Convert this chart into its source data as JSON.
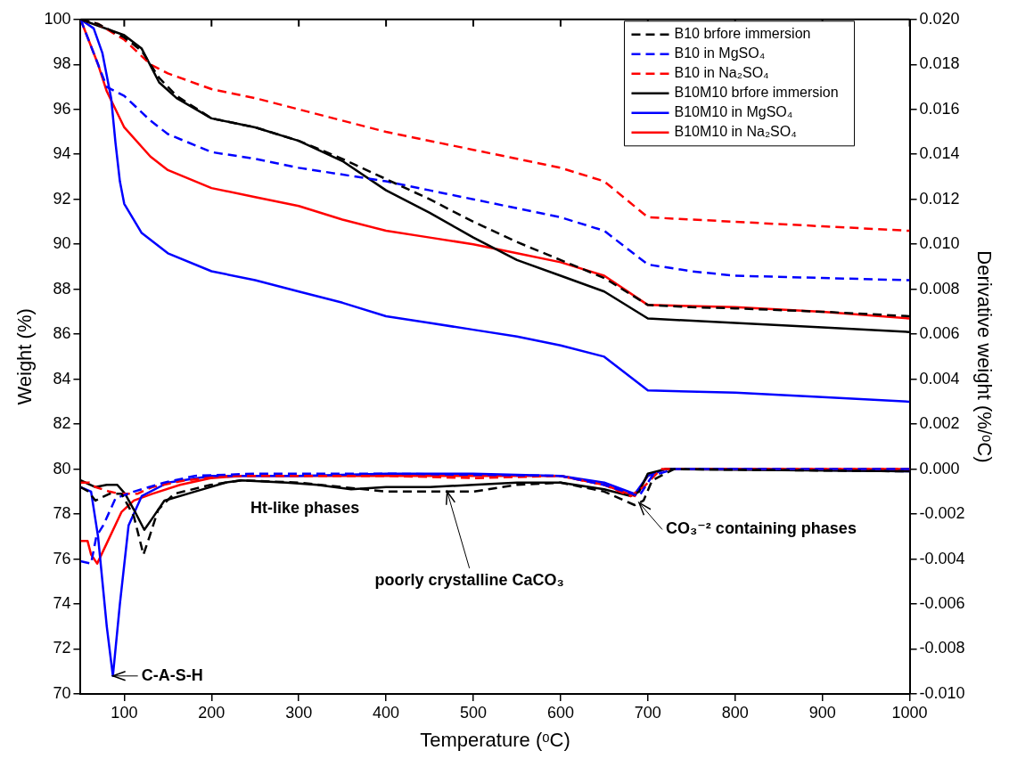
{
  "chart_data": {
    "type": "line",
    "xlabel": "Temperature (ᵒC)",
    "ylabel": "Weight (%)",
    "y2label": "Derivative weight (%/ᵒC)",
    "xlim": [
      50,
      1000
    ],
    "xticks": [
      100,
      200,
      300,
      400,
      500,
      600,
      700,
      800,
      900,
      1000
    ],
    "ylim": [
      70,
      100
    ],
    "yticks": [
      70,
      72,
      74,
      76,
      78,
      80,
      82,
      84,
      86,
      88,
      90,
      92,
      94,
      96,
      98,
      100
    ],
    "y2lim": [
      -0.01,
      0.02
    ],
    "y2ticks": [
      {
        "value": -0.01,
        "label": "-0.010"
      },
      {
        "value": -0.008,
        "label": "-0.008"
      },
      {
        "value": -0.006,
        "label": "-0.006"
      },
      {
        "value": -0.004,
        "label": "-0.004"
      },
      {
        "value": -0.002,
        "label": "-0.002"
      },
      {
        "value": 0,
        "label": "0.000"
      },
      {
        "value": 0.002,
        "label": "0.002"
      },
      {
        "value": 0.004,
        "label": "0.004"
      },
      {
        "value": 0.006,
        "label": "0.006"
      },
      {
        "value": 0.008,
        "label": "0.008"
      },
      {
        "value": 0.01,
        "label": "0.010"
      },
      {
        "value": 0.012,
        "label": "0.012"
      },
      {
        "value": 0.014,
        "label": "0.014"
      },
      {
        "value": 0.016,
        "label": "0.016"
      },
      {
        "value": 0.018,
        "label": "0.018"
      },
      {
        "value": 0.02,
        "label": "0.020"
      }
    ],
    "grid": false,
    "legend": "top right",
    "marker": "none",
    "annotations": [
      "Ht-like phases",
      {
        "text": "C-A-S-H",
        "x": 87,
        "y": 70.8
      },
      {
        "text": "poorly crystalline CaCO₃",
        "x": 470,
        "y": 79.0
      },
      {
        "text": "CO₃⁻² containing phases",
        "x": 690,
        "y": 78.5
      }
    ],
    "series": [
      {
        "name": "B10 brfore immersion",
        "color": "#000000",
        "line_style": "dashed",
        "x": [
          50,
          70,
          100,
          120,
          140,
          160,
          200,
          250,
          300,
          350,
          400,
          450,
          500,
          550,
          600,
          650,
          700,
          750,
          800,
          900,
          1000
        ],
        "values": [
          100,
          99.8,
          99.2,
          98.6,
          97.4,
          96.6,
          95.6,
          95.2,
          94.6,
          93.8,
          92.9,
          92.0,
          91.0,
          90.1,
          89.3,
          88.5,
          87.3,
          87.2,
          87.15,
          87.0,
          86.8
        ]
      },
      {
        "name": "B10 in MgSO₄",
        "color": "#0000ff",
        "line_style": "dashed",
        "x": [
          50,
          60,
          70,
          80,
          100,
          130,
          150,
          200,
          250,
          300,
          400,
          450,
          500,
          600,
          650,
          700,
          750,
          800,
          900,
          1000
        ],
        "values": [
          100,
          99,
          98,
          97,
          96.6,
          95.5,
          94.9,
          94.1,
          93.8,
          93.4,
          92.8,
          92.4,
          92.0,
          91.2,
          90.6,
          89.1,
          88.8,
          88.6,
          88.5,
          88.4
        ]
      },
      {
        "name": "B10 in Na₂SO₄",
        "color": "#ff0000",
        "line_style": "dashed",
        "x": [
          50,
          70,
          100,
          130,
          150,
          200,
          250,
          300,
          400,
          500,
          600,
          650,
          700,
          800,
          900,
          1000
        ],
        "values": [
          100,
          99.8,
          99.1,
          98.0,
          97.6,
          96.9,
          96.5,
          96.0,
          95.0,
          94.2,
          93.4,
          92.8,
          91.2,
          91.0,
          90.8,
          90.6
        ]
      },
      {
        "name": "B10M10 brfore immersion",
        "color": "#000000",
        "line_style": "solid",
        "x": [
          50,
          100,
          120,
          140,
          160,
          200,
          250,
          300,
          350,
          400,
          450,
          500,
          550,
          600,
          650,
          700,
          800,
          900,
          1000
        ],
        "values": [
          100,
          99.3,
          98.7,
          97.2,
          96.5,
          95.6,
          95.2,
          94.6,
          93.7,
          92.4,
          91.4,
          90.3,
          89.3,
          88.6,
          87.9,
          86.7,
          86.5,
          86.3,
          86.1
        ]
      },
      {
        "name": "B10M10 in MgSO₄",
        "color": "#0000ff",
        "line_style": "solid",
        "x": [
          50,
          65,
          75,
          85,
          90,
          95,
          100,
          120,
          150,
          200,
          250,
          300,
          350,
          400,
          450,
          500,
          550,
          600,
          650,
          700,
          800,
          900,
          1000
        ],
        "values": [
          100,
          99.6,
          98.5,
          96.5,
          94.5,
          92.8,
          91.8,
          90.5,
          89.6,
          88.8,
          88.4,
          87.9,
          87.4,
          86.8,
          86.5,
          86.2,
          85.9,
          85.5,
          85.0,
          83.5,
          83.4,
          83.2,
          83.0
        ]
      },
      {
        "name": "B10M10 in Na₂SO₄",
        "color": "#ff0000",
        "line_style": "solid",
        "x": [
          50,
          60,
          70,
          80,
          100,
          130,
          150,
          200,
          250,
          300,
          350,
          400,
          450,
          500,
          550,
          600,
          650,
          700,
          800,
          900,
          1000
        ],
        "values": [
          100,
          99,
          98,
          96.8,
          95.2,
          93.9,
          93.3,
          92.5,
          92.1,
          91.7,
          91.1,
          90.6,
          90.3,
          90.0,
          89.6,
          89.2,
          88.6,
          87.3,
          87.2,
          87.0,
          86.7
        ]
      },
      {
        "color": "#000000",
        "line_style": "dashed",
        "axis": "y2",
        "x": [
          50,
          59,
          67,
          83,
          97,
          111,
          122,
          129,
          139,
          157,
          199,
          234,
          300,
          350,
          400,
          450,
          500,
          550,
          600,
          650,
          685,
          695,
          705,
          730,
          1000
        ],
        "values": [
          -0.0008,
          -0.001,
          -0.0014,
          -0.0011,
          -0.0011,
          -0.0021,
          -0.0038,
          -0.003,
          -0.0018,
          -0.0011,
          -0.0007,
          -0.0005,
          -0.0006,
          -0.0008,
          -0.001,
          -0.001,
          -0.001,
          -0.0007,
          -0.0006,
          -0.001,
          -0.0016,
          -0.0014,
          -0.0005,
          0,
          -0.0001
        ]
      },
      {
        "color": "#0000ff",
        "line_style": "dashed",
        "axis": "y2",
        "x": [
          50,
          62,
          68,
          76,
          90,
          111,
          146,
          181,
          250,
          400,
          600,
          650,
          690,
          705,
          730,
          1000
        ],
        "values": [
          -0.0041,
          -0.0042,
          -0.003,
          -0.0025,
          -0.0013,
          -0.001,
          -0.0006,
          -0.0003,
          -0.0002,
          -0.0002,
          -0.0003,
          -0.0007,
          -0.0012,
          -0.0003,
          0,
          0
        ]
      },
      {
        "color": "#ff0000",
        "line_style": "dashed",
        "axis": "y2",
        "x": [
          50,
          60,
          67,
          83,
          95,
          115,
          132,
          170,
          220,
          400,
          500,
          600,
          650,
          680,
          695,
          715,
          1000
        ],
        "values": [
          -0.0006,
          -0.0006,
          -0.0008,
          -0.001,
          -0.0011,
          -0.0011,
          -0.0008,
          -0.0005,
          -0.0003,
          -0.0003,
          -0.0004,
          -0.0003,
          -0.0007,
          -0.0012,
          -0.0008,
          0,
          0
        ]
      },
      {
        "color": "#000000",
        "line_style": "solid",
        "axis": "y2",
        "x": [
          50,
          67,
          80,
          92,
          101,
          111,
          123,
          132,
          146,
          181,
          216,
          234,
          286,
          321,
          360,
          400,
          450,
          500,
          550,
          600,
          650,
          680,
          690,
          700,
          720,
          1000
        ],
        "values": [
          -0.0005,
          -0.0008,
          -0.0007,
          -0.0007,
          -0.0011,
          -0.0018,
          -0.0027,
          -0.0022,
          -0.0014,
          -0.001,
          -0.0006,
          -0.0005,
          -0.0006,
          -0.0007,
          -0.0009,
          -0.0008,
          -0.0008,
          -0.0007,
          -0.0006,
          -0.0006,
          -0.0009,
          -0.0012,
          -0.001,
          -0.0002,
          0,
          -0.0001
        ]
      },
      {
        "color": "#0000ff",
        "line_style": "solid",
        "axis": "y2",
        "x": [
          50,
          62,
          70,
          80,
          87,
          95,
          105,
          120,
          150,
          200,
          300,
          400,
          500,
          600,
          650,
          685,
          700,
          720,
          800,
          1000
        ],
        "values": [
          -0.0008,
          -0.001,
          -0.003,
          -0.007,
          -0.0092,
          -0.006,
          -0.0025,
          -0.0012,
          -0.0006,
          -0.0003,
          -0.0003,
          -0.0002,
          -0.0002,
          -0.0003,
          -0.0006,
          -0.0011,
          -0.0003,
          0,
          0,
          -0.0001
        ]
      },
      {
        "color": "#ff0000",
        "line_style": "solid",
        "axis": "y2",
        "x": [
          50,
          58,
          62,
          69,
          80,
          97,
          111,
          132,
          164,
          199,
          234,
          400,
          600,
          650,
          685,
          700,
          720,
          1000
        ],
        "values": [
          -0.0032,
          -0.0032,
          -0.0038,
          -0.0042,
          -0.0033,
          -0.0019,
          -0.0014,
          -0.0011,
          -0.0007,
          -0.0004,
          -0.0003,
          -0.0003,
          -0.0003,
          -0.0007,
          -0.0012,
          -0.0003,
          0,
          0
        ]
      }
    ]
  }
}
